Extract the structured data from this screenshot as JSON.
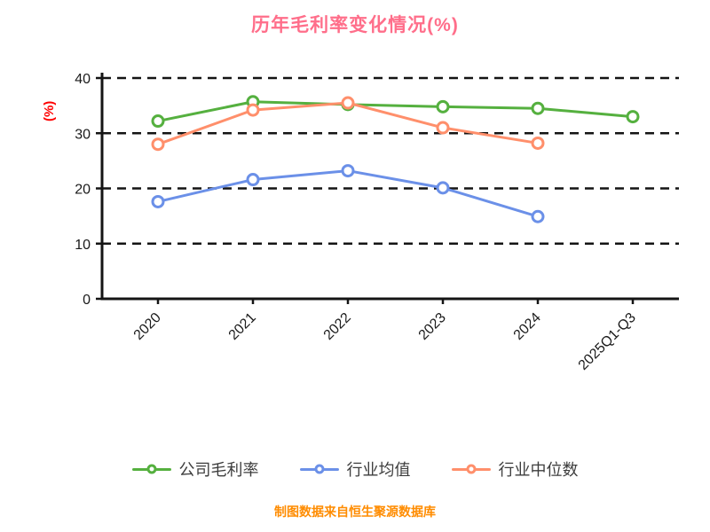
{
  "title": "历年毛利率变化情况(%)",
  "footer": {
    "text": "制图数据来自恒生聚源数据库",
    "color": "#ff8c00"
  },
  "colors": {
    "title": "#ff6e8a",
    "ylabel": "#ff0000",
    "axis": "#141414",
    "legend_text": "#3d3d3d"
  },
  "chart_data": {
    "type": "line",
    "title": "历年毛利率变化情况(%)",
    "xlabel": "",
    "ylabel": "(%)",
    "ylim": [
      0,
      40
    ],
    "yticks": [
      0,
      10,
      20,
      30,
      40
    ],
    "grid": "dashed-horizontal",
    "legend_position": "bottom",
    "categories": [
      "2020",
      "2021",
      "2022",
      "2023",
      "2024",
      "2025Q1-Q3"
    ],
    "series": [
      {
        "id": "company-gross-margin",
        "name": "公司毛利率",
        "color": "#55b03f",
        "values": [
          32.2,
          35.7,
          35.2,
          34.8,
          34.5,
          33.0
        ]
      },
      {
        "id": "industry-mean",
        "name": "行业均值",
        "color": "#6b90e8",
        "values": [
          17.6,
          21.6,
          23.2,
          20.1,
          14.9,
          null
        ]
      },
      {
        "id": "industry-median",
        "name": "行业中位数",
        "color": "#ff8f6b",
        "values": [
          28.0,
          34.2,
          35.5,
          31.0,
          28.2,
          null
        ]
      }
    ]
  }
}
